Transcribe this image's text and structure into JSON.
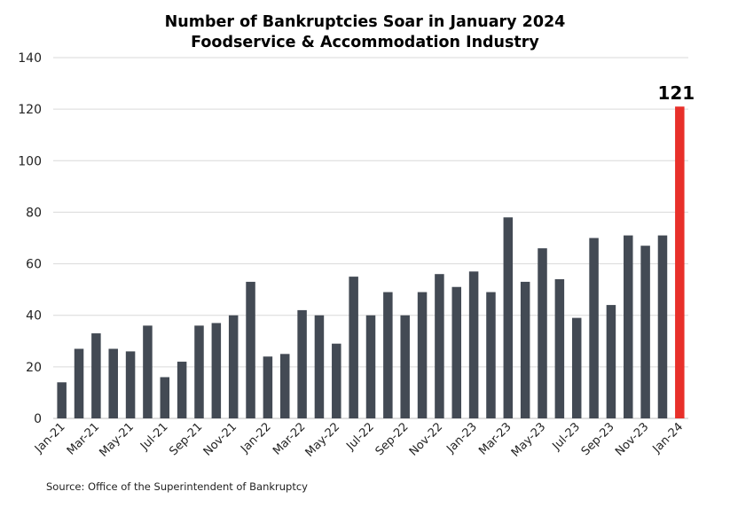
{
  "chart_data": {
    "type": "bar",
    "title": "Number of Bankruptcies Soar in January 2024",
    "subtitle": "Foodservice & Accommodation Industry",
    "source": "Source: Office of the Superintendent of Bankruptcy",
    "categories": [
      "Jan-21",
      "Feb-21",
      "Mar-21",
      "Apr-21",
      "May-21",
      "Jun-21",
      "Jul-21",
      "Aug-21",
      "Sep-21",
      "Oct-21",
      "Nov-21",
      "Dec-21",
      "Jan-22",
      "Feb-22",
      "Mar-22",
      "Apr-22",
      "May-22",
      "Jun-22",
      "Jul-22",
      "Aug-22",
      "Sep-22",
      "Oct-22",
      "Nov-22",
      "Dec-22",
      "Jan-23",
      "Feb-23",
      "Mar-23",
      "Apr-23",
      "May-23",
      "Jun-23",
      "Jul-23",
      "Aug-23",
      "Sep-23",
      "Oct-23",
      "Nov-23",
      "Dec-23",
      "Jan-24"
    ],
    "x_tick_labels": [
      "Jan-21",
      "Mar-21",
      "May-21",
      "Jul-21",
      "Sep-21",
      "Nov-21",
      "Jan-22",
      "Mar-22",
      "May-22",
      "Jul-22",
      "Sep-22",
      "Nov-22",
      "Jan-23",
      "Mar-23",
      "May-23",
      "Jul-23",
      "Sep-23",
      "Nov-23",
      "Jan-24"
    ],
    "values": [
      14,
      27,
      33,
      27,
      26,
      36,
      16,
      22,
      36,
      37,
      40,
      53,
      24,
      25,
      42,
      40,
      29,
      55,
      40,
      49,
      40,
      49,
      56,
      51,
      57,
      49,
      78,
      53,
      66,
      54,
      39,
      70,
      44,
      71,
      67,
      71,
      121
    ],
    "ylim": [
      0,
      140
    ],
    "yticks": [
      0,
      20,
      40,
      60,
      80,
      100,
      120,
      140
    ],
    "grid": true,
    "colors": {
      "bar": "#434a54",
      "highlight": "#e8302a",
      "grid": "#d9d9d9"
    },
    "highlight_index": 36,
    "data_labels": [
      {
        "index": 36,
        "text": "121"
      }
    ]
  }
}
